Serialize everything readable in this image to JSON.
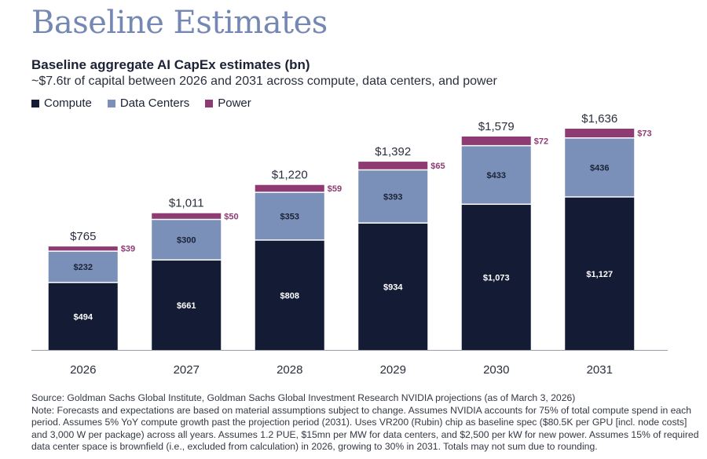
{
  "header": {
    "page_title": "Baseline Estimates"
  },
  "chart_data": {
    "type": "bar",
    "stacked": true,
    "title": "Baseline aggregate AI CapEx estimates (bn)",
    "subtitle": "~$7.6tr of capital between 2026 and 2031 across compute, data centers, and power",
    "categories": [
      "2026",
      "2027",
      "2028",
      "2029",
      "2030",
      "2031"
    ],
    "series": [
      {
        "name": "Compute",
        "color": "#131b35",
        "values": [
          494,
          661,
          808,
          934,
          1073,
          1127
        ],
        "labels": [
          "$494",
          "$661",
          "$808",
          "$934",
          "$1,073",
          "$1,127"
        ]
      },
      {
        "name": "Data Centers",
        "color": "#7a90b8",
        "values": [
          232,
          300,
          353,
          393,
          433,
          436
        ],
        "labels": [
          "$232",
          "$300",
          "$353",
          "$393",
          "$433",
          "$436"
        ]
      },
      {
        "name": "Power",
        "color": "#8e3b74",
        "values": [
          39,
          50,
          59,
          65,
          72,
          73
        ],
        "labels": [
          "$39",
          "$50",
          "$59",
          "$65",
          "$72",
          "$73"
        ]
      }
    ],
    "totals": [
      765,
      1011,
      1220,
      1392,
      1579,
      1636
    ],
    "total_labels": [
      "$765",
      "$1,011",
      "$1,220",
      "$1,392",
      "$1,579",
      "$1,636"
    ],
    "ylim": [
      0,
      1700
    ],
    "grid": false,
    "legend_position": "top-left"
  },
  "footer": {
    "source": "Source: Goldman Sachs Global Institute, Goldman Sachs Global Investment Research NVIDIA projections (as of March 3, 2026)",
    "note": "Note: Forecasts and expectations are based on material assumptions subject to change. Assumes NVIDIA accounts for 75% of total compute spend in each period. Assumes 5% YoY compute growth past the projection period (2031). Uses VR200 (Rubin) chip as baseline spec ($80.5K per GPU [incl. node costs] and 3,000 W per package) across all years. Assumes 1.2 PUE, $15mn per MW for data centers, and $2,500 per kW for new power. Assumes 15% of required data center space is brownfield (i.e., excluded from calculation) in 2026, growing to 30% in 2031. Totals may not sum due to rounding."
  }
}
